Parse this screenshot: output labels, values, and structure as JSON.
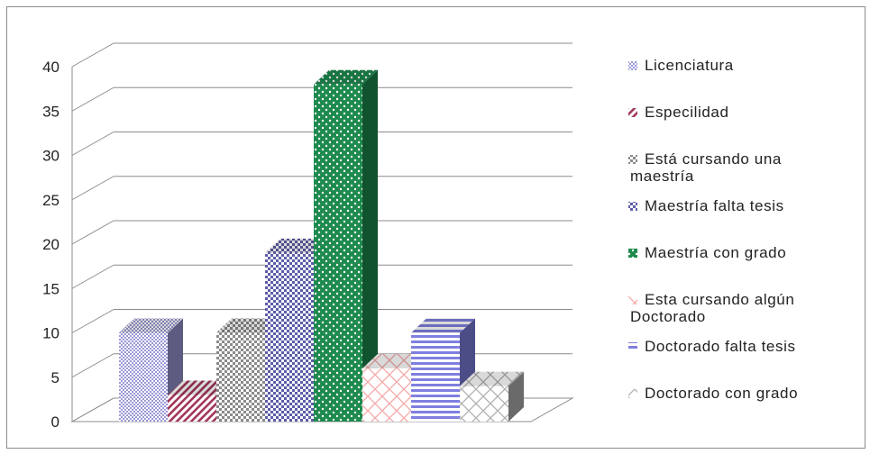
{
  "chart_data": {
    "type": "bar",
    "title": "",
    "xlabel": "",
    "ylabel": "",
    "ylim": [
      0,
      40
    ],
    "yticks": [
      0,
      5,
      10,
      15,
      20,
      25,
      30,
      35,
      40
    ],
    "grid": true,
    "legend_position": "right",
    "three_d": true,
    "series": [
      {
        "name": "Licenciatura",
        "value": 10,
        "color": "#9999d6",
        "pattern": "small-checker"
      },
      {
        "name": "Especilidad",
        "value": 3,
        "color": "#a3385a",
        "pattern": "diagonal-stripes"
      },
      {
        "name": "Está cursando una maestría",
        "value": 10,
        "color": "#8a8a8a",
        "pattern": "checker"
      },
      {
        "name": "Maestría falta tesis",
        "value": 19,
        "color": "#5d5da8",
        "pattern": "checker"
      },
      {
        "name": "Maestría con grado",
        "value": 38,
        "color": "#1e8a4e",
        "pattern": "dots"
      },
      {
        "name": "Esta cursando algún Doctorado",
        "value": 6,
        "color": "#f5a8a8",
        "pattern": "diagonal-cross"
      },
      {
        "name": "Doctorado falta tesis",
        "value": 10,
        "color": "#7f7fe0",
        "pattern": "horizontal-stripes"
      },
      {
        "name": "Doctorado con grado",
        "value": 4,
        "color": "#b0b0b0",
        "pattern": "diagonal-cross"
      }
    ]
  },
  "legend": {
    "items": [
      {
        "lines": [
          "Licenciatura"
        ]
      },
      {
        "lines": [
          "Especilidad"
        ]
      },
      {
        "lines": [
          "Está cursando una",
          "maestría"
        ]
      },
      {
        "lines": [
          "Maestría falta tesis"
        ]
      },
      {
        "lines": [
          "Maestría con grado"
        ]
      },
      {
        "lines": [
          "Esta cursando algún",
          "Doctorado"
        ]
      },
      {
        "lines": [
          "Doctorado falta tesis"
        ]
      },
      {
        "lines": [
          "Doctorado con grado"
        ]
      }
    ]
  }
}
